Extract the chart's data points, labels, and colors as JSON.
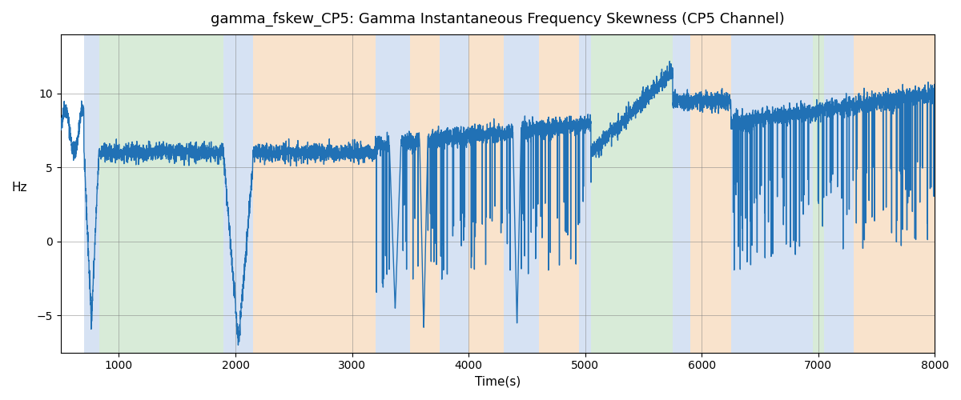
{
  "title": "gamma_fskew_CP5: Gamma Instantaneous Frequency Skewness (CP5 Channel)",
  "xlabel": "Time(s)",
  "ylabel": "Hz",
  "xlim": [
    500,
    8000
  ],
  "ylim": [
    -7.5,
    14
  ],
  "line_color": "#2171b5",
  "line_width": 1.0,
  "background_color": "#ffffff",
  "grid": true,
  "bands": [
    {
      "xmin": 700,
      "xmax": 830,
      "color": "#aec6e8",
      "alpha": 0.5
    },
    {
      "xmin": 830,
      "xmax": 1900,
      "color": "#b2d8b2",
      "alpha": 0.5
    },
    {
      "xmin": 1900,
      "xmax": 2150,
      "color": "#aec6e8",
      "alpha": 0.5
    },
    {
      "xmin": 2150,
      "xmax": 3200,
      "color": "#f5c99a",
      "alpha": 0.5
    },
    {
      "xmin": 3200,
      "xmax": 3500,
      "color": "#aec6e8",
      "alpha": 0.5
    },
    {
      "xmin": 3500,
      "xmax": 3750,
      "color": "#f5c99a",
      "alpha": 0.5
    },
    {
      "xmin": 3750,
      "xmax": 4000,
      "color": "#aec6e8",
      "alpha": 0.5
    },
    {
      "xmin": 4000,
      "xmax": 4300,
      "color": "#f5c99a",
      "alpha": 0.5
    },
    {
      "xmin": 4300,
      "xmax": 4600,
      "color": "#aec6e8",
      "alpha": 0.5
    },
    {
      "xmin": 4600,
      "xmax": 4950,
      "color": "#f5c99a",
      "alpha": 0.5
    },
    {
      "xmin": 4950,
      "xmax": 5050,
      "color": "#aec6e8",
      "alpha": 0.5
    },
    {
      "xmin": 5050,
      "xmax": 5750,
      "color": "#b2d8b2",
      "alpha": 0.5
    },
    {
      "xmin": 5750,
      "xmax": 5900,
      "color": "#aec6e8",
      "alpha": 0.5
    },
    {
      "xmin": 5900,
      "xmax": 6250,
      "color": "#f5c99a",
      "alpha": 0.5
    },
    {
      "xmin": 6250,
      "xmax": 6950,
      "color": "#aec6e8",
      "alpha": 0.5
    },
    {
      "xmin": 6950,
      "xmax": 7050,
      "color": "#b2d8b2",
      "alpha": 0.5
    },
    {
      "xmin": 7050,
      "xmax": 7300,
      "color": "#aec6e8",
      "alpha": 0.5
    },
    {
      "xmin": 7300,
      "xmax": 8000,
      "color": "#f5c99a",
      "alpha": 0.5
    }
  ],
  "seed": 42,
  "n_points": 7500
}
